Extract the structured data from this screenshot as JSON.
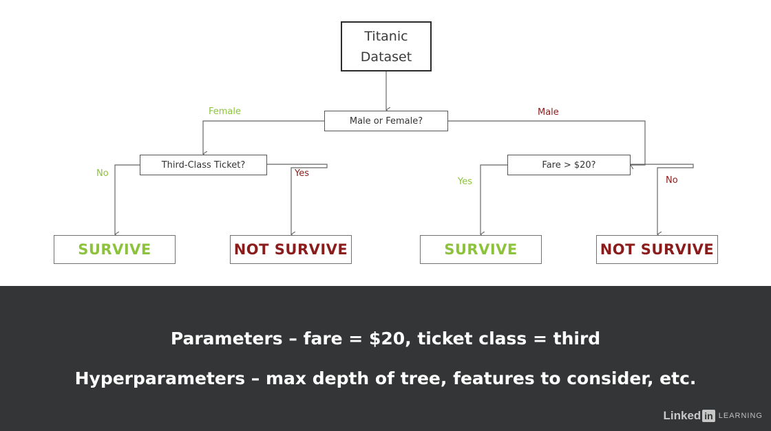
{
  "tree": {
    "root": {
      "line1": "Titanic",
      "line2": "Dataset"
    },
    "questions": {
      "sex": "Male or Female?",
      "third_class": "Third-Class Ticket?",
      "fare": "Fare > $20?"
    },
    "edge_labels": {
      "female": "Female",
      "male": "Male",
      "no_left": "No",
      "yes_left": "Yes",
      "yes_right": "Yes",
      "no_right": "No"
    },
    "leaves": [
      "SURVIVE",
      "NOT SURVIVE",
      "SURVIVE",
      "NOT SURVIVE"
    ]
  },
  "caption": {
    "line1": "Parameters – fare = $20, ticket class = third",
    "line2": "Hyperparameters – max depth of tree, features to consider, etc."
  },
  "brand": {
    "name": "Linked",
    "badge": "in",
    "suffix": "LEARNING"
  },
  "colors": {
    "survive": "#8dc23d",
    "not_survive": "#8b1c1c",
    "caption_background": "#333536"
  }
}
